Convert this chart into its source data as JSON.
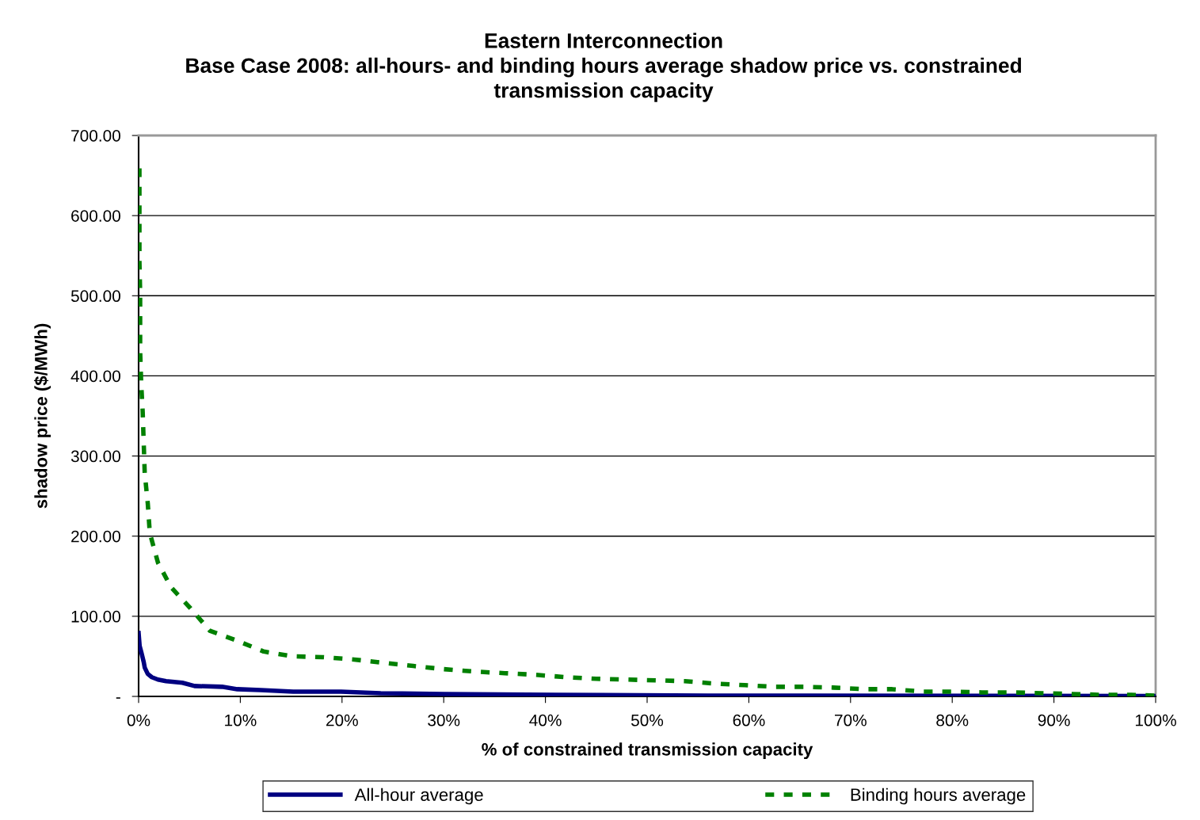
{
  "chart_data": {
    "type": "line",
    "title": "Eastern Interconnection\nBase Case 2008: all-hours- and binding hours average shadow price vs. constrained\ntransmission capacity",
    "xlabel": "% of constrained transmission capacity",
    "ylabel": "shadow price ($/MWh)",
    "xlim": [
      0,
      100
    ],
    "ylim": [
      0,
      700
    ],
    "xticks": [
      {
        "value": 0,
        "label": "0%"
      },
      {
        "value": 10,
        "label": "10%"
      },
      {
        "value": 20,
        "label": "20%"
      },
      {
        "value": 30,
        "label": "30%"
      },
      {
        "value": 40,
        "label": "40%"
      },
      {
        "value": 50,
        "label": "50%"
      },
      {
        "value": 60,
        "label": "60%"
      },
      {
        "value": 70,
        "label": "70%"
      },
      {
        "value": 80,
        "label": "80%"
      },
      {
        "value": 90,
        "label": "90%"
      },
      {
        "value": 100,
        "label": "100%"
      }
    ],
    "yticks": [
      {
        "value": 0,
        "label": "-"
      },
      {
        "value": 100,
        "label": "100.00"
      },
      {
        "value": 200,
        "label": "200.00"
      },
      {
        "value": 300,
        "label": "300.00"
      },
      {
        "value": 400,
        "label": "400.00"
      },
      {
        "value": 500,
        "label": "500.00"
      },
      {
        "value": 600,
        "label": "600.00"
      },
      {
        "value": 700,
        "label": "700.00"
      }
    ],
    "grid": "y",
    "legend": "bottom",
    "series": [
      {
        "name": "All-hour average",
        "color": "#000080",
        "line_style": "solid",
        "x": [
          0,
          0.1,
          0.25,
          0.5,
          0.6,
          0.9,
          1.3,
          1.9,
          2.7,
          4.3,
          5.5,
          8.2,
          9.7,
          12,
          15.2,
          19.9,
          23.8,
          30,
          41,
          56,
          100
        ],
        "values": [
          79,
          63,
          56,
          43,
          36,
          28,
          24,
          21,
          19,
          17,
          13,
          12,
          9,
          8,
          6,
          6,
          4,
          3,
          2,
          1,
          0.5
        ]
      },
      {
        "name": "Binding hours average",
        "color": "#008000",
        "line_style": "dashed",
        "x": [
          0.08,
          0.08,
          0.08,
          0.08,
          0.15,
          0.15,
          0.15,
          0.25,
          0.4,
          0.5,
          0.6,
          0.9,
          1.1,
          1.9,
          3.2,
          5.1,
          7,
          9.6,
          12.3,
          15.2,
          18.1,
          21.2,
          24.1,
          27,
          30,
          33,
          36,
          39,
          42,
          45,
          48,
          51,
          53.7,
          56.7,
          59.6,
          62.5,
          65.4,
          68.3,
          71.3,
          74.1,
          77.1,
          80,
          82.9,
          85.8,
          88.8,
          91.7,
          94.6,
          97.6,
          100
        ],
        "values": [
          659,
          619,
          582,
          543,
          505,
          469,
          431,
          392,
          355,
          317,
          279,
          241,
          204,
          167,
          136,
          110,
          82,
          70,
          56,
          50,
          49,
          46,
          42,
          38,
          34,
          31,
          29,
          27,
          24,
          22,
          21,
          20,
          19,
          16,
          14,
          12,
          12,
          11,
          9,
          9,
          6,
          6,
          5,
          5,
          4,
          3,
          2,
          2,
          1
        ]
      }
    ]
  }
}
